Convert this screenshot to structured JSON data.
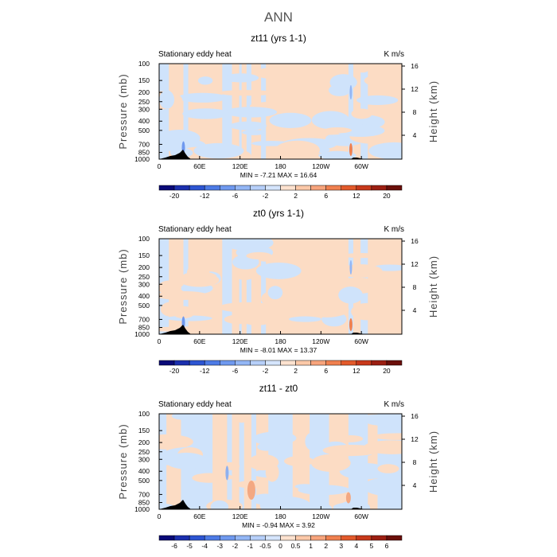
{
  "figure": {
    "title": "ANN",
    "colors": {
      "pos_light": "#fcdcc4",
      "neg_light": "#cfe3fb",
      "text": "#000000",
      "title": "#555555"
    }
  },
  "chart_data": [
    {
      "type": "heatmap",
      "title": "zt11 (yrs 1-1)",
      "subtitle_left": "Stationary eddy heat",
      "subtitle_right": "K m/s",
      "ylabel": "Pressure (mb)",
      "ylabel_right": "Height (km)",
      "y_ticks": [
        "100",
        "150",
        "200",
        "250",
        "300",
        "400",
        "500",
        "700",
        "850",
        "1000"
      ],
      "y_tick_values": [
        100,
        150,
        200,
        250,
        300,
        400,
        500,
        700,
        850,
        1000
      ],
      "y_scale": "log",
      "y_right_ticks": [
        "16",
        "12",
        "8",
        "4"
      ],
      "x_ticks": [
        "0",
        "60E",
        "120E",
        "180",
        "120W",
        "60W"
      ],
      "x_tick_values": [
        0,
        60,
        120,
        180,
        240,
        300
      ],
      "xlim": [
        0,
        360
      ],
      "ylim": [
        100,
        1000
      ],
      "min_max_text": "MIN =  -7.21   MAX =  16.64",
      "min": -7.21,
      "max": 16.64,
      "colorbar_labels": [
        "-20",
        "-12",
        "-6",
        "-2",
        "2",
        "6",
        "12",
        "20"
      ],
      "colorbar_label_positions": [
        1,
        3,
        5,
        7,
        9,
        11,
        13,
        15
      ]
    },
    {
      "type": "heatmap",
      "title": "zt0 (yrs 1-1)",
      "subtitle_left": "Stationary eddy heat",
      "subtitle_right": "K m/s",
      "ylabel": "Pressure (mb)",
      "ylabel_right": "Height (km)",
      "y_ticks": [
        "100",
        "150",
        "200",
        "250",
        "300",
        "400",
        "500",
        "700",
        "850",
        "1000"
      ],
      "y_tick_values": [
        100,
        150,
        200,
        250,
        300,
        400,
        500,
        700,
        850,
        1000
      ],
      "y_scale": "log",
      "y_right_ticks": [
        "16",
        "12",
        "8",
        "4"
      ],
      "x_ticks": [
        "0",
        "60E",
        "120E",
        "180",
        "120W",
        "60W"
      ],
      "x_tick_values": [
        0,
        60,
        120,
        180,
        240,
        300
      ],
      "xlim": [
        0,
        360
      ],
      "ylim": [
        100,
        1000
      ],
      "min_max_text": "MIN =  -8.01   MAX =  13.37",
      "min": -8.01,
      "max": 13.37,
      "colorbar_labels": [
        "-20",
        "-12",
        "-6",
        "-2",
        "2",
        "6",
        "12",
        "20"
      ],
      "colorbar_label_positions": [
        1,
        3,
        5,
        7,
        9,
        11,
        13,
        15
      ]
    },
    {
      "type": "heatmap",
      "title": "zt11 - zt0",
      "subtitle_left": "Stationary eddy heat",
      "subtitle_right": "K m/s",
      "ylabel": "Pressure (mb)",
      "ylabel_right": "Height (km)",
      "y_ticks": [
        "100",
        "150",
        "200",
        "250",
        "300",
        "400",
        "500",
        "700",
        "850",
        "1000"
      ],
      "y_tick_values": [
        100,
        150,
        200,
        250,
        300,
        400,
        500,
        700,
        850,
        1000
      ],
      "y_scale": "log",
      "y_right_ticks": [
        "16",
        "12",
        "8",
        "4"
      ],
      "x_ticks": [
        "0",
        "60E",
        "120E",
        "180",
        "120W",
        "60W"
      ],
      "x_tick_values": [
        0,
        60,
        120,
        180,
        240,
        300
      ],
      "xlim": [
        0,
        360
      ],
      "ylim": [
        100,
        1000
      ],
      "min_max_text": "MIN =  -0.94   MAX =   3.92",
      "min": -0.94,
      "max": 3.92,
      "colorbar_labels": [
        "-6",
        "-5",
        "-4",
        "-3",
        "-2",
        "-1",
        "-0.5",
        "0",
        "0.5",
        "1",
        "2",
        "3",
        "4",
        "5",
        "6"
      ],
      "colorbar_label_positions": [
        1,
        2,
        3,
        4,
        5,
        6,
        7,
        8,
        9,
        10,
        11,
        12,
        13,
        14,
        15
      ]
    }
  ],
  "colorbar_colors": [
    "#0a0a78",
    "#1b2fae",
    "#2d55d2",
    "#4d7be6",
    "#6f99ef",
    "#93b6f5",
    "#b6cff9",
    "#d5e5fc",
    "#fde2cf",
    "#fbc8a8",
    "#f7a47c",
    "#f0804f",
    "#e35a2b",
    "#c8391b",
    "#9c1f12",
    "#6b0f0a"
  ]
}
